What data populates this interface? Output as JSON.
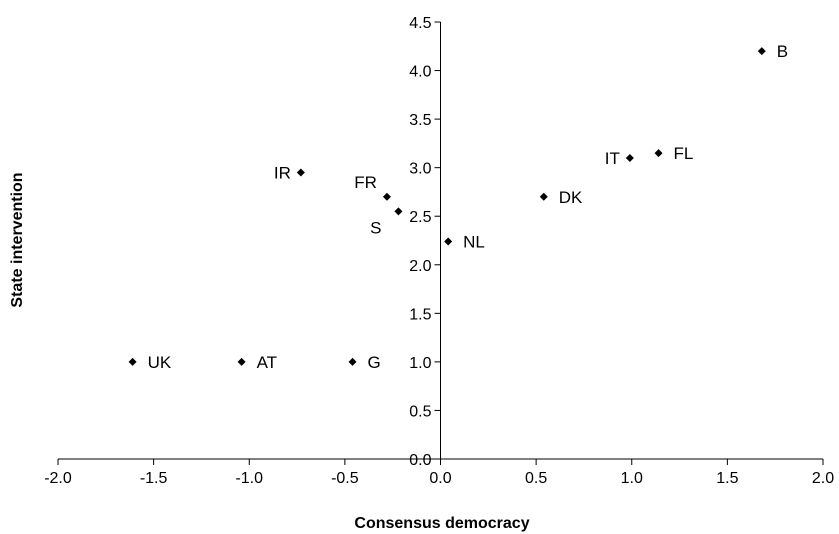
{
  "chart_data": {
    "type": "scatter",
    "title": "",
    "xlabel": "Consensus democracy",
    "ylabel": "State intervention",
    "xlim": [
      -2.0,
      2.0
    ],
    "ylim": [
      0.0,
      4.5
    ],
    "x_ticks": [
      -2.0,
      -1.5,
      -1.0,
      -0.5,
      0.0,
      0.5,
      1.0,
      1.5,
      2.0
    ],
    "y_ticks": [
      0.0,
      0.5,
      1.0,
      1.5,
      2.0,
      2.5,
      3.0,
      3.5,
      4.0,
      4.5
    ],
    "x_tick_labels": [
      "-2.0",
      "-1.5",
      "-1.0",
      "-0.5",
      "0.0",
      "0.5",
      "1.0",
      "1.5",
      "2.0"
    ],
    "y_tick_labels": [
      "0.0",
      "0.5",
      "1.0",
      "1.5",
      "2.0",
      "2.5",
      "3.0",
      "3.5",
      "4.0",
      "4.5"
    ],
    "grid": false,
    "marker": "diamond",
    "marker_color": "#000000",
    "points": [
      {
        "label": "B",
        "x": 1.68,
        "y": 4.2,
        "label_side": "right"
      },
      {
        "label": "IT",
        "x": 0.99,
        "y": 3.1,
        "label_side": "left"
      },
      {
        "label": "FL",
        "x": 1.14,
        "y": 3.15,
        "label_side": "right"
      },
      {
        "label": "DK",
        "x": 0.54,
        "y": 2.7,
        "label_side": "right"
      },
      {
        "label": "NL",
        "x": 0.04,
        "y": 2.24,
        "label_side": "right"
      },
      {
        "label": "IR",
        "x": -0.73,
        "y": 2.95,
        "label_side": "left"
      },
      {
        "label": "FR",
        "x": -0.28,
        "y": 2.7,
        "label_side": "above-left"
      },
      {
        "label": "S",
        "x": -0.22,
        "y": 2.55,
        "label_side": "below-left"
      },
      {
        "label": "UK",
        "x": -1.61,
        "y": 1.0,
        "label_side": "right"
      },
      {
        "label": "AT",
        "x": -1.04,
        "y": 1.0,
        "label_side": "right"
      },
      {
        "label": "G",
        "x": -0.46,
        "y": 1.0,
        "label_side": "right"
      }
    ]
  }
}
